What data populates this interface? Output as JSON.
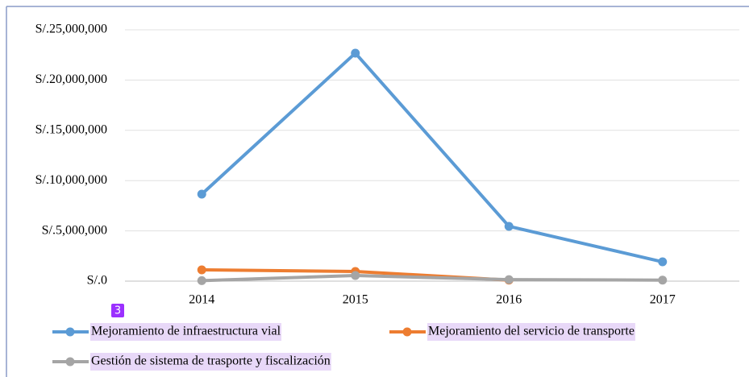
{
  "chart_data": {
    "type": "line",
    "categories": [
      "2014",
      "2015",
      "2016",
      "2017"
    ],
    "series": [
      {
        "name": "Mejoramiento de infraestructura vial",
        "color": "#5b9bd5",
        "values": [
          8650000,
          22680000,
          5450000,
          1920000
        ]
      },
      {
        "name": "Mejoramiento del servicio de transporte",
        "color": "#ed7d31",
        "values": [
          1120000,
          960000,
          100000,
          null
        ]
      },
      {
        "name": "Gestión de sistema de trasporte y fiscalización",
        "color": "#a5a5a5",
        "values": [
          50000,
          560000,
          150000,
          100000
        ]
      }
    ],
    "ylim": [
      0,
      25000000
    ],
    "yticks": [
      {
        "value": 0,
        "label": "S/.0"
      },
      {
        "value": 5000000,
        "label": "S/.5,000,000"
      },
      {
        "value": 10000000,
        "label": "S/.10,000,000"
      },
      {
        "value": 15000000,
        "label": "S/.15,000,000"
      },
      {
        "value": 20000000,
        "label": "S/.20,000,000"
      },
      {
        "value": 25000000,
        "label": "S/.25,000,000"
      }
    ],
    "grid": true,
    "legend": "bottom"
  },
  "overlay": {
    "badge": "3"
  }
}
